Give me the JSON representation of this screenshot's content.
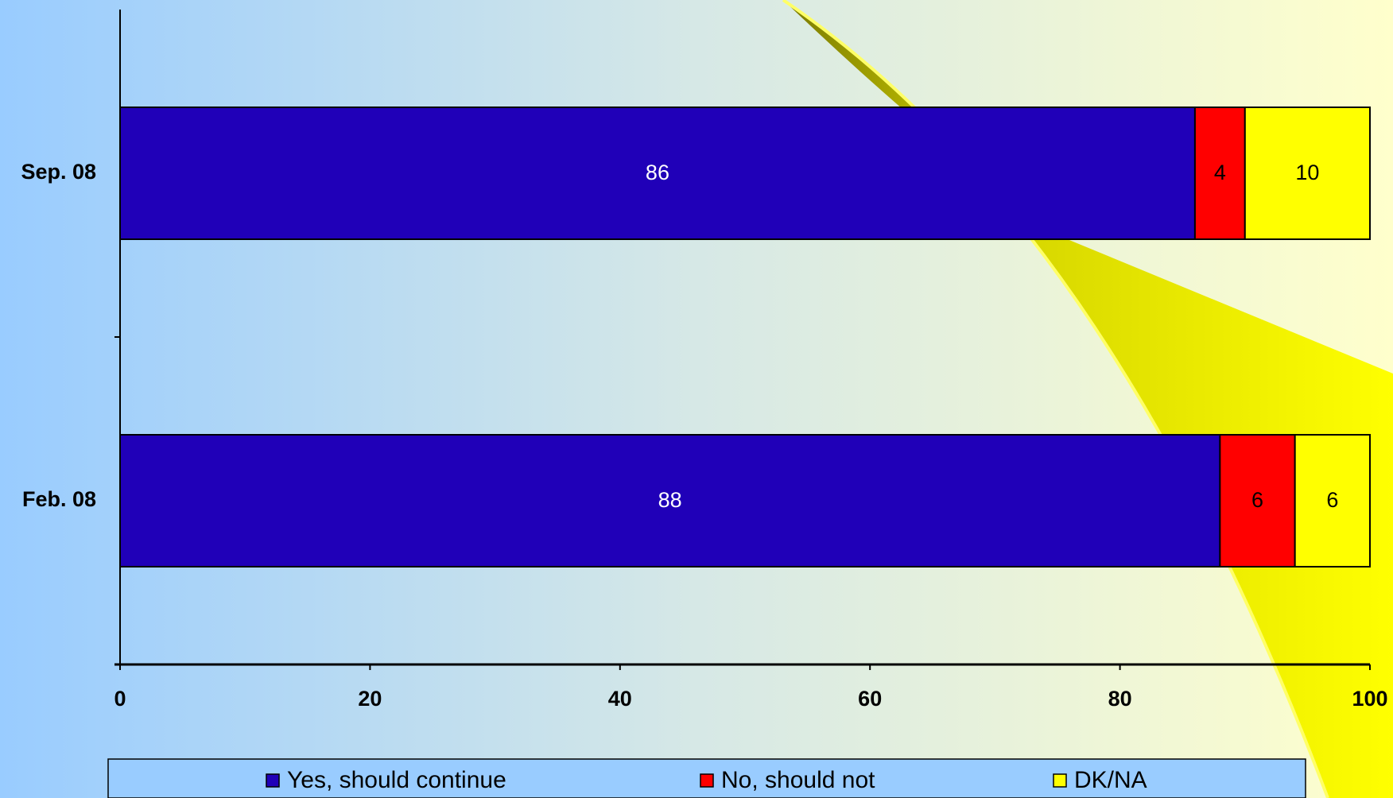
{
  "chart_data": {
    "type": "stacked-bar-horizontal",
    "categories": [
      "Sep. 08",
      "Feb. 08"
    ],
    "series": [
      {
        "name": "Yes, should continue",
        "color": "#2000b8",
        "values": [
          86,
          88
        ]
      },
      {
        "name": "No, should not",
        "color": "#ff0000",
        "values": [
          4,
          6
        ]
      },
      {
        "name": "DK/NA",
        "color": "#ffff00",
        "values": [
          10,
          6
        ]
      }
    ],
    "xlim": [
      0,
      100
    ],
    "xticks": [
      0,
      20,
      40,
      60,
      80,
      100
    ],
    "legend": "bottom"
  }
}
